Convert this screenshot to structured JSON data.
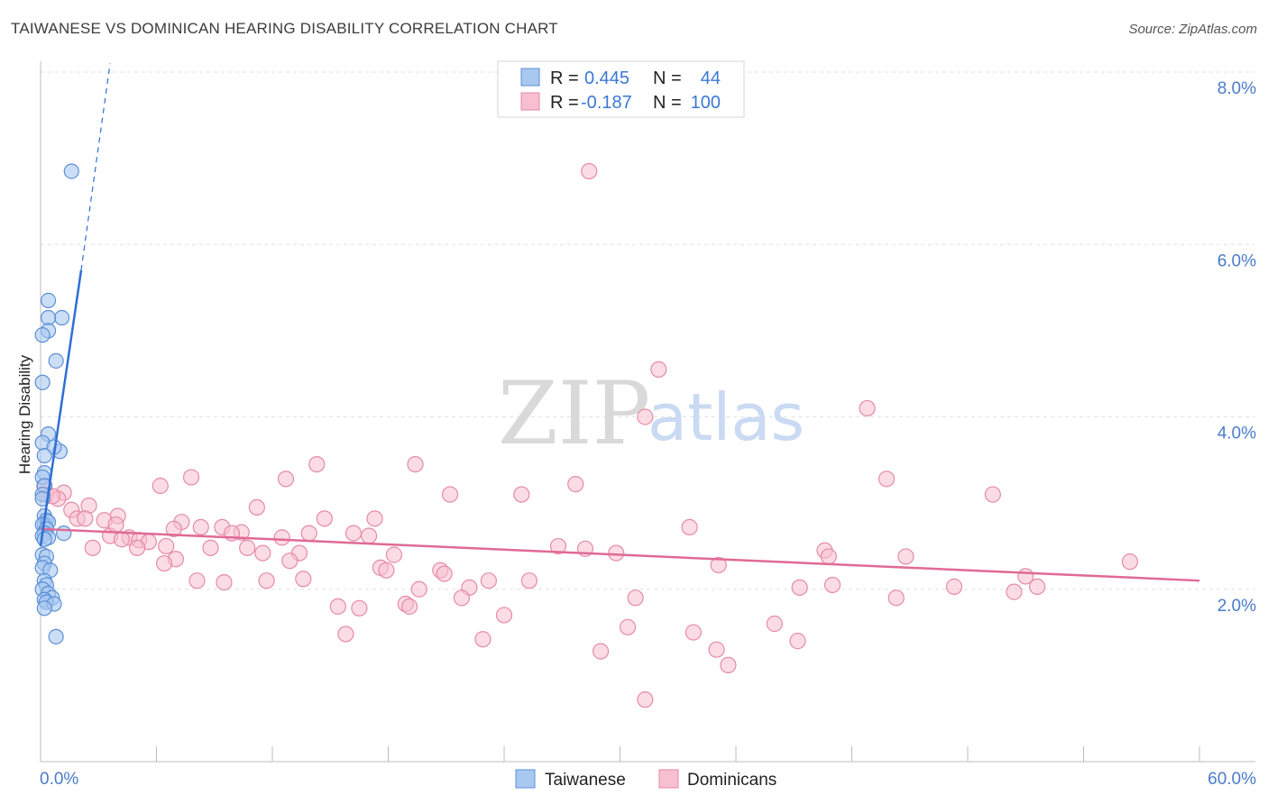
{
  "title": "TAIWANESE VS DOMINICAN HEARING DISABILITY CORRELATION CHART",
  "source": "Source: ZipAtlas.com",
  "watermark": {
    "zip": "ZIP",
    "atlas": "atlas"
  },
  "legend": {
    "r_label": "R =",
    "n_label": "N =",
    "rows": [
      {
        "r": "0.445",
        "n": "44",
        "color": "#a9c8f0",
        "stroke": "#5b8fd6"
      },
      {
        "r": "-0.187",
        "n": "100",
        "color": "#f7bfd0",
        "stroke": "#e68aa8"
      }
    ]
  },
  "bottom_legend": [
    "Taiwanese",
    "Dominicans"
  ],
  "colors": {
    "blue_fill": "#a9c8f0",
    "blue_stroke": "#5b8fd6",
    "blue_line": "#2e6fd4",
    "pink_fill": "#f7bfd0",
    "pink_stroke": "#e68aa8",
    "pink_line": "#e06a95",
    "tick_text": "#4a7cc9"
  },
  "chart_data": {
    "type": "scatter",
    "title": "TAIWANESE VS DOMINICAN HEARING DISABILITY CORRELATION CHART",
    "xlabel": "",
    "ylabel": "Hearing Disability",
    "xlim": [
      0,
      60
    ],
    "ylim": [
      0,
      8.0
    ],
    "x_tick_labels": [
      "0.0%",
      "60.0%"
    ],
    "y_ticks": [
      2.0,
      4.0,
      6.0,
      8.0
    ],
    "y_tick_labels": [
      "2.0%",
      "4.0%",
      "6.0%",
      "8.0%"
    ],
    "grid": true,
    "legend_position": "top-center",
    "series": [
      {
        "name": "Taiwanese",
        "r": 0.445,
        "n": 44,
        "trend": {
          "x": [
            0.0,
            2.1
          ],
          "y": [
            2.5,
            5.7
          ],
          "dashed_extension": {
            "x": [
              2.1,
              3.6
            ],
            "y": [
              5.7,
              8.1
            ]
          }
        },
        "points": [
          [
            1.6,
            6.85
          ],
          [
            0.4,
            5.35
          ],
          [
            1.1,
            5.15
          ],
          [
            0.4,
            5.15
          ],
          [
            0.4,
            5.0
          ],
          [
            0.1,
            4.95
          ],
          [
            0.8,
            4.65
          ],
          [
            0.1,
            4.4
          ],
          [
            0.4,
            3.8
          ],
          [
            0.1,
            3.7
          ],
          [
            1.0,
            3.6
          ],
          [
            0.7,
            3.65
          ],
          [
            0.2,
            3.55
          ],
          [
            0.2,
            3.35
          ],
          [
            0.1,
            3.3
          ],
          [
            0.2,
            3.2
          ],
          [
            0.1,
            3.1
          ],
          [
            0.1,
            3.05
          ],
          [
            0.2,
            2.85
          ],
          [
            0.3,
            2.8
          ],
          [
            0.2,
            2.75
          ],
          [
            0.1,
            2.75
          ],
          [
            0.4,
            2.78
          ],
          [
            0.3,
            2.7
          ],
          [
            0.2,
            2.65
          ],
          [
            0.1,
            2.62
          ],
          [
            0.4,
            2.6
          ],
          [
            0.2,
            2.58
          ],
          [
            1.2,
            2.65
          ],
          [
            0.1,
            2.4
          ],
          [
            0.3,
            2.38
          ],
          [
            0.2,
            2.3
          ],
          [
            0.1,
            2.25
          ],
          [
            0.5,
            2.22
          ],
          [
            0.2,
            2.1
          ],
          [
            0.3,
            2.05
          ],
          [
            0.1,
            2.0
          ],
          [
            0.4,
            1.95
          ],
          [
            0.6,
            1.9
          ],
          [
            0.2,
            1.88
          ],
          [
            0.3,
            1.85
          ],
          [
            0.7,
            1.83
          ],
          [
            0.2,
            1.78
          ],
          [
            0.8,
            1.45
          ]
        ]
      },
      {
        "name": "Dominicans",
        "r": -0.187,
        "n": 100,
        "trend": {
          "x": [
            0.0,
            60.0
          ],
          "y": [
            2.7,
            2.1
          ]
        },
        "points": [
          [
            28.4,
            6.85
          ],
          [
            32.0,
            4.55
          ],
          [
            42.8,
            4.1
          ],
          [
            31.3,
            4.0
          ],
          [
            14.3,
            3.45
          ],
          [
            19.4,
            3.45
          ],
          [
            7.8,
            3.3
          ],
          [
            12.7,
            3.28
          ],
          [
            27.7,
            3.22
          ],
          [
            43.8,
            3.28
          ],
          [
            6.2,
            3.2
          ],
          [
            21.2,
            3.1
          ],
          [
            24.9,
            3.1
          ],
          [
            49.3,
            3.1
          ],
          [
            0.2,
            3.2
          ],
          [
            0.3,
            3.1
          ],
          [
            1.2,
            3.12
          ],
          [
            0.9,
            3.05
          ],
          [
            0.6,
            3.08
          ],
          [
            2.5,
            2.97
          ],
          [
            11.2,
            2.95
          ],
          [
            1.6,
            2.92
          ],
          [
            4.0,
            2.85
          ],
          [
            17.3,
            2.82
          ],
          [
            1.9,
            2.82
          ],
          [
            2.3,
            2.82
          ],
          [
            3.3,
            2.8
          ],
          [
            14.7,
            2.82
          ],
          [
            7.3,
            2.78
          ],
          [
            8.3,
            2.72
          ],
          [
            9.4,
            2.72
          ],
          [
            6.9,
            2.7
          ],
          [
            10.4,
            2.66
          ],
          [
            9.9,
            2.65
          ],
          [
            13.9,
            2.65
          ],
          [
            16.2,
            2.65
          ],
          [
            17.0,
            2.62
          ],
          [
            3.6,
            2.62
          ],
          [
            4.6,
            2.6
          ],
          [
            5.1,
            2.57
          ],
          [
            12.5,
            2.6
          ],
          [
            5.6,
            2.55
          ],
          [
            4.2,
            2.58
          ],
          [
            33.6,
            2.72
          ],
          [
            26.8,
            2.5
          ],
          [
            28.2,
            2.47
          ],
          [
            5.0,
            2.48
          ],
          [
            8.8,
            2.48
          ],
          [
            10.7,
            2.48
          ],
          [
            2.7,
            2.48
          ],
          [
            11.5,
            2.42
          ],
          [
            13.4,
            2.42
          ],
          [
            29.8,
            2.42
          ],
          [
            40.6,
            2.45
          ],
          [
            40.8,
            2.38
          ],
          [
            44.8,
            2.38
          ],
          [
            7.0,
            2.35
          ],
          [
            12.9,
            2.33
          ],
          [
            18.3,
            2.4
          ],
          [
            56.4,
            2.32
          ],
          [
            6.4,
            2.3
          ],
          [
            35.1,
            2.28
          ],
          [
            17.6,
            2.25
          ],
          [
            17.9,
            2.22
          ],
          [
            20.7,
            2.22
          ],
          [
            20.9,
            2.18
          ],
          [
            51.0,
            2.15
          ],
          [
            8.1,
            2.1
          ],
          [
            9.5,
            2.08
          ],
          [
            11.7,
            2.1
          ],
          [
            13.6,
            2.12
          ],
          [
            23.2,
            2.1
          ],
          [
            25.3,
            2.1
          ],
          [
            51.6,
            2.03
          ],
          [
            19.6,
            2.0
          ],
          [
            22.2,
            2.02
          ],
          [
            39.3,
            2.02
          ],
          [
            41.0,
            2.05
          ],
          [
            47.3,
            2.03
          ],
          [
            50.4,
            1.97
          ],
          [
            30.8,
            1.9
          ],
          [
            44.3,
            1.9
          ],
          [
            21.8,
            1.9
          ],
          [
            18.9,
            1.83
          ],
          [
            19.1,
            1.8
          ],
          [
            15.4,
            1.8
          ],
          [
            16.5,
            1.78
          ],
          [
            24.0,
            1.7
          ],
          [
            38.0,
            1.6
          ],
          [
            30.4,
            1.56
          ],
          [
            33.8,
            1.5
          ],
          [
            15.8,
            1.48
          ],
          [
            22.9,
            1.42
          ],
          [
            39.2,
            1.4
          ],
          [
            35.0,
            1.3
          ],
          [
            29.0,
            1.28
          ],
          [
            35.6,
            1.12
          ],
          [
            31.3,
            0.72
          ],
          [
            6.5,
            2.5
          ],
          [
            3.9,
            2.75
          ]
        ]
      }
    ]
  }
}
